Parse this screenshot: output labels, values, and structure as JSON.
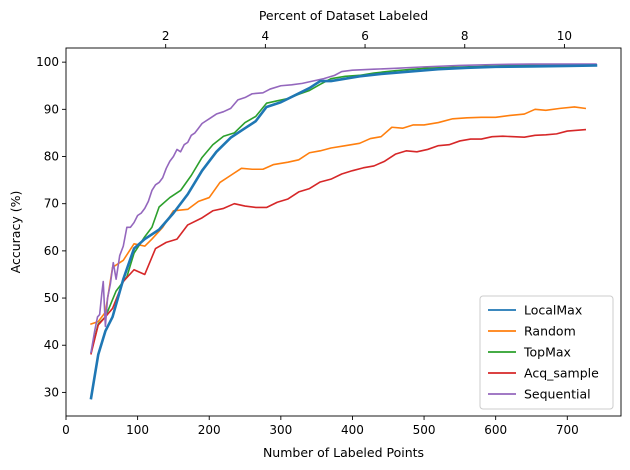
{
  "chart_data": {
    "type": "line",
    "title": "",
    "xlabel": "Number of Labeled Points",
    "ylabel": "Accuracy (%)",
    "top_xlabel": "Percent of Dataset Labeled",
    "xlim": [
      0,
      775
    ],
    "ylim": [
      25,
      103
    ],
    "x_ticks": [
      0,
      100,
      200,
      300,
      400,
      500,
      600,
      700
    ],
    "y_ticks": [
      30,
      40,
      50,
      60,
      70,
      80,
      90,
      100
    ],
    "top_x_ticks": [
      2,
      4,
      6,
      8,
      10
    ],
    "top_x_to_bottom_x_factor": 69.6,
    "grid": false,
    "legend_position": "lower-right",
    "series": [
      {
        "name": "LocalMax",
        "color": "#1f77b4",
        "points": [
          [
            35,
            28.8
          ],
          [
            45,
            38
          ],
          [
            55,
            43
          ],
          [
            65,
            46
          ],
          [
            80,
            54
          ],
          [
            95,
            60.5
          ],
          [
            110,
            62.5
          ],
          [
            130,
            64.5
          ],
          [
            150,
            68
          ],
          [
            170,
            72
          ],
          [
            190,
            77
          ],
          [
            210,
            81
          ],
          [
            230,
            84
          ],
          [
            250,
            86
          ],
          [
            265,
            87.5
          ],
          [
            280,
            90.5
          ],
          [
            300,
            91.5
          ],
          [
            320,
            93
          ],
          [
            340,
            94.5
          ],
          [
            355,
            96
          ],
          [
            370,
            96
          ],
          [
            390,
            96.5
          ],
          [
            410,
            97
          ],
          [
            440,
            97.5
          ],
          [
            480,
            98
          ],
          [
            520,
            98.5
          ],
          [
            560,
            98.8
          ],
          [
            600,
            99
          ],
          [
            650,
            99.1
          ],
          [
            700,
            99.2
          ],
          [
            740,
            99.3
          ]
        ]
      },
      {
        "name": "Random",
        "color": "#ff7f0e",
        "points": [
          [
            35,
            44.5
          ],
          [
            45,
            45
          ],
          [
            55,
            47
          ],
          [
            65,
            56.5
          ],
          [
            80,
            58
          ],
          [
            95,
            61.5
          ],
          [
            110,
            61
          ],
          [
            120,
            62.5
          ],
          [
            135,
            65
          ],
          [
            150,
            68.5
          ],
          [
            170,
            68.8
          ],
          [
            185,
            70.5
          ],
          [
            200,
            71.3
          ],
          [
            215,
            74.5
          ],
          [
            230,
            76
          ],
          [
            245,
            77.5
          ],
          [
            260,
            77.3
          ],
          [
            275,
            77.3
          ],
          [
            290,
            78.3
          ],
          [
            310,
            78.8
          ],
          [
            325,
            79.3
          ],
          [
            340,
            80.8
          ],
          [
            355,
            81.2
          ],
          [
            370,
            81.8
          ],
          [
            390,
            82.3
          ],
          [
            410,
            82.8
          ],
          [
            425,
            83.8
          ],
          [
            440,
            84.2
          ],
          [
            455,
            86.2
          ],
          [
            470,
            86
          ],
          [
            485,
            86.7
          ],
          [
            500,
            86.7
          ],
          [
            520,
            87.2
          ],
          [
            540,
            88
          ],
          [
            560,
            88.2
          ],
          [
            580,
            88.3
          ],
          [
            600,
            88.3
          ],
          [
            620,
            88.7
          ],
          [
            640,
            89
          ],
          [
            655,
            90
          ],
          [
            670,
            89.8
          ],
          [
            690,
            90.2
          ],
          [
            710,
            90.5
          ],
          [
            725,
            90.2
          ]
        ]
      },
      {
        "name": "TopMax",
        "color": "#2ca02c",
        "points": [
          [
            35,
            38.5
          ],
          [
            45,
            44.5
          ],
          [
            55,
            46
          ],
          [
            70,
            51.5
          ],
          [
            85,
            54.5
          ],
          [
            95,
            59.5
          ],
          [
            110,
            63
          ],
          [
            120,
            65
          ],
          [
            130,
            69.3
          ],
          [
            145,
            71.3
          ],
          [
            160,
            72.8
          ],
          [
            175,
            76
          ],
          [
            190,
            79.8
          ],
          [
            205,
            82.5
          ],
          [
            220,
            84.3
          ],
          [
            235,
            85
          ],
          [
            250,
            87.2
          ],
          [
            265,
            88.5
          ],
          [
            280,
            91.3
          ],
          [
            295,
            91.8
          ],
          [
            310,
            92.3
          ],
          [
            325,
            93.2
          ],
          [
            340,
            94
          ],
          [
            355,
            95.3
          ],
          [
            370,
            96.5
          ],
          [
            390,
            97
          ],
          [
            410,
            97.2
          ],
          [
            430,
            97.7
          ],
          [
            460,
            98.2
          ],
          [
            500,
            98.7
          ],
          [
            540,
            98.9
          ],
          [
            580,
            99.1
          ],
          [
            620,
            99.3
          ],
          [
            680,
            99.4
          ],
          [
            740,
            99.5
          ]
        ]
      },
      {
        "name": "Acq_sample",
        "color": "#d62728",
        "points": [
          [
            35,
            38.2
          ],
          [
            45,
            44.3
          ],
          [
            55,
            46
          ],
          [
            65,
            47.8
          ],
          [
            80,
            53.5
          ],
          [
            95,
            56
          ],
          [
            110,
            55
          ],
          [
            125,
            60.5
          ],
          [
            140,
            61.8
          ],
          [
            155,
            62.5
          ],
          [
            170,
            65.5
          ],
          [
            190,
            67
          ],
          [
            205,
            68.5
          ],
          [
            220,
            69
          ],
          [
            235,
            70
          ],
          [
            250,
            69.5
          ],
          [
            265,
            69.2
          ],
          [
            280,
            69.2
          ],
          [
            295,
            70.3
          ],
          [
            310,
            71
          ],
          [
            325,
            72.5
          ],
          [
            340,
            73.2
          ],
          [
            355,
            74.6
          ],
          [
            370,
            75.2
          ],
          [
            385,
            76.3
          ],
          [
            400,
            77
          ],
          [
            415,
            77.6
          ],
          [
            430,
            78
          ],
          [
            445,
            79
          ],
          [
            460,
            80.5
          ],
          [
            475,
            81.2
          ],
          [
            490,
            81
          ],
          [
            505,
            81.5
          ],
          [
            520,
            82.3
          ],
          [
            535,
            82.5
          ],
          [
            550,
            83.3
          ],
          [
            565,
            83.7
          ],
          [
            580,
            83.7
          ],
          [
            595,
            84.2
          ],
          [
            610,
            84.3
          ],
          [
            625,
            84.2
          ],
          [
            640,
            84.1
          ],
          [
            655,
            84.5
          ],
          [
            670,
            84.6
          ],
          [
            685,
            84.8
          ],
          [
            700,
            85.4
          ],
          [
            725,
            85.7
          ]
        ]
      },
      {
        "name": "Sequential",
        "color": "#9467bd",
        "points": [
          [
            35,
            38.5
          ],
          [
            40,
            43
          ],
          [
            44,
            46
          ],
          [
            47,
            46.5
          ],
          [
            50,
            51
          ],
          [
            52,
            53.5
          ],
          [
            55,
            44
          ],
          [
            58,
            50
          ],
          [
            62,
            53
          ],
          [
            66,
            57.5
          ],
          [
            70,
            54
          ],
          [
            75,
            59
          ],
          [
            80,
            61
          ],
          [
            85,
            65
          ],
          [
            90,
            65
          ],
          [
            95,
            66
          ],
          [
            100,
            67.5
          ],
          [
            105,
            68
          ],
          [
            110,
            69
          ],
          [
            115,
            70.5
          ],
          [
            120,
            72.8
          ],
          [
            125,
            74
          ],
          [
            130,
            74.5
          ],
          [
            135,
            75.5
          ],
          [
            140,
            77.5
          ],
          [
            145,
            79
          ],
          [
            150,
            80
          ],
          [
            155,
            81.5
          ],
          [
            160,
            81
          ],
          [
            165,
            82.5
          ],
          [
            170,
            83
          ],
          [
            175,
            84.5
          ],
          [
            180,
            85
          ],
          [
            185,
            86
          ],
          [
            190,
            87
          ],
          [
            195,
            87.5
          ],
          [
            200,
            88
          ],
          [
            210,
            89
          ],
          [
            220,
            89.5
          ],
          [
            230,
            90.2
          ],
          [
            240,
            92
          ],
          [
            250,
            92.5
          ],
          [
            260,
            93.3
          ],
          [
            275,
            93.5
          ],
          [
            285,
            94.3
          ],
          [
            300,
            95
          ],
          [
            315,
            95.2
          ],
          [
            330,
            95.5
          ],
          [
            345,
            96
          ],
          [
            360,
            96.5
          ],
          [
            375,
            97.2
          ],
          [
            385,
            98
          ],
          [
            400,
            98.3
          ],
          [
            430,
            98.5
          ],
          [
            460,
            98.7
          ],
          [
            500,
            99
          ],
          [
            550,
            99.3
          ],
          [
            600,
            99.5
          ],
          [
            650,
            99.6
          ],
          [
            700,
            99.6
          ],
          [
            740,
            99.6
          ]
        ]
      }
    ]
  }
}
